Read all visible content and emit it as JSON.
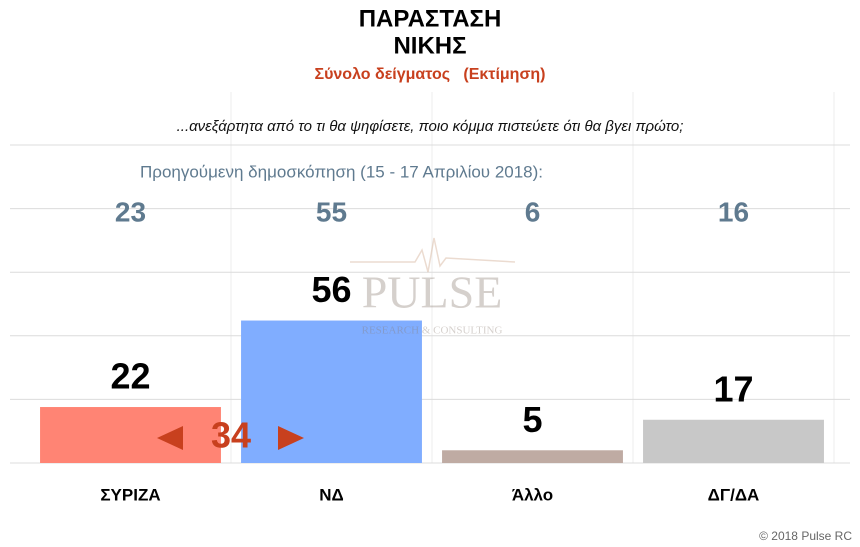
{
  "chart_data": {
    "type": "bar",
    "title": [
      "ΠΑΡΑΣΤΑΣΗ",
      "ΝΙΚΗΣ"
    ],
    "subtitle": "Σύνολο δείγματος   (Εκτίμηση)",
    "question": "...ανεξάρτητα από το τι θα ψηφίσετε, ποιο κόμμα πιστεύετε ότι θα βγει πρώτο;",
    "previous_label": "Προηγούμενη δημοσκόπηση (15 - 17 Απριλίου 2018):",
    "previous_values": [
      23,
      55,
      6,
      16
    ],
    "categories": [
      "ΣΥΡΙΖΑ",
      "ΝΔ",
      "Άλλο",
      "ΔΓ/ΔΑ"
    ],
    "values": [
      22,
      56,
      5,
      17
    ],
    "colors": [
      "#ff8474",
      "#80adff",
      "#bfaba3",
      "#c8c8c8"
    ],
    "gap_annotation": 34,
    "ylim": [
      0,
      125
    ],
    "yticks": [
      0,
      25,
      50,
      75,
      100,
      125
    ],
    "grid": true,
    "watermark": {
      "name": "PULSE",
      "tagline": "RESEARCH & CONSULTING"
    },
    "copyright": "© 2018 Pulse RC"
  }
}
